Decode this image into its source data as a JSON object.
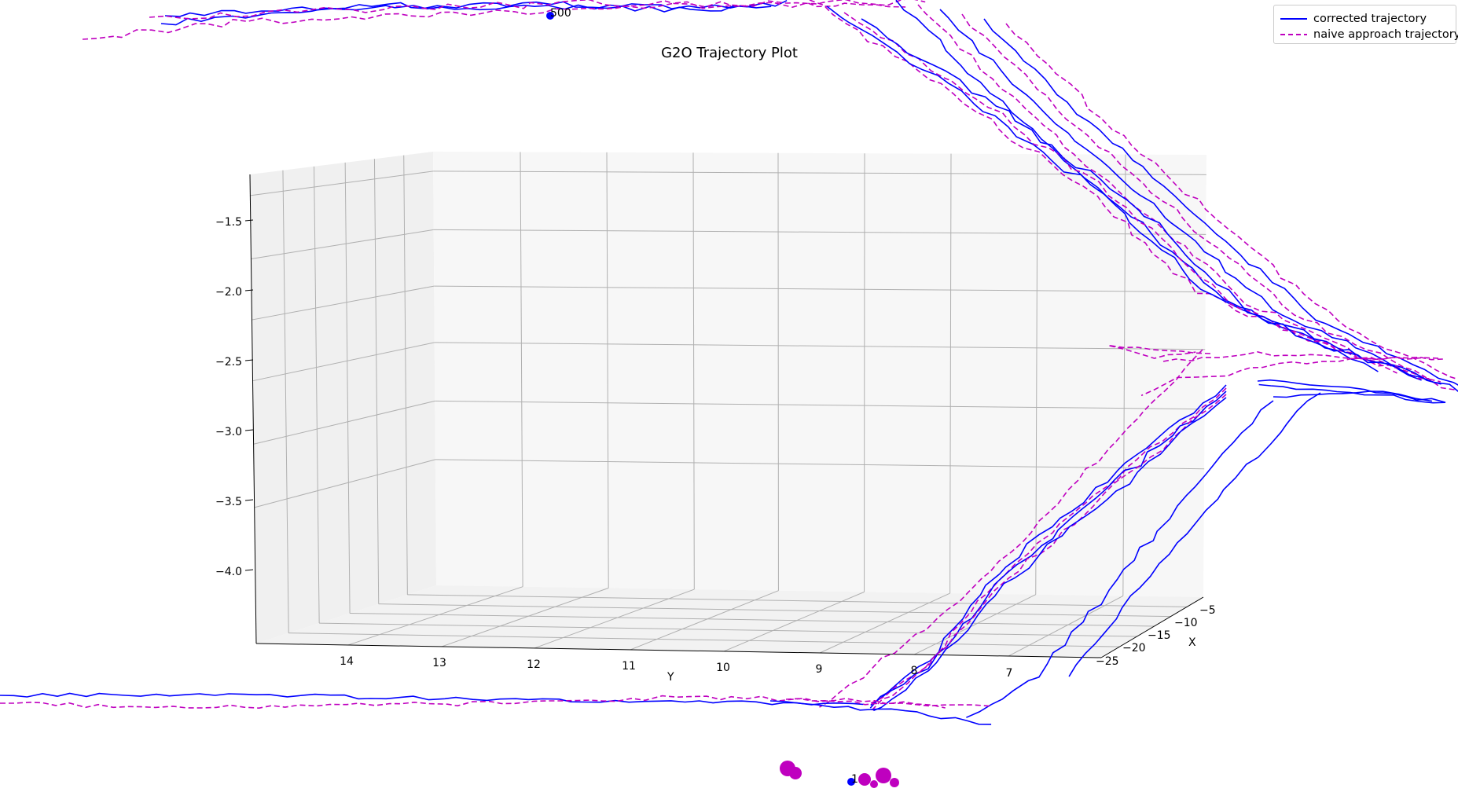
{
  "chart_data": {
    "type": "line",
    "projection": "3d",
    "title": "G2O Trajectory Plot",
    "xlabel": "X",
    "ylabel": "Y",
    "zlabel": "",
    "x_ticks": [
      "−5",
      "−10",
      "−15",
      "−20",
      "−25"
    ],
    "y_ticks": [
      "14",
      "13",
      "12",
      "11",
      "10",
      "9",
      "8",
      "7"
    ],
    "z_ticks": [
      "−1.5",
      "−2.0",
      "−2.5",
      "−3.0",
      "−3.5",
      "−4.0"
    ],
    "grid": true,
    "legend_position": "top-right",
    "series": [
      {
        "name": "corrected trajectory",
        "color": "#0000ff",
        "style": "solid"
      },
      {
        "name": "naive approach trajectory",
        "color": "#bf00bf",
        "style": "dashed"
      }
    ],
    "point_labels": [
      "1",
      "500"
    ],
    "colors": {
      "corrected": "#0000ff",
      "naive": "#bf00bf",
      "grid": "#b0b0b0",
      "pane_left": "#f0f0f0",
      "pane_back": "#f7f7f7",
      "pane_floor": "#f2f2f2"
    }
  }
}
